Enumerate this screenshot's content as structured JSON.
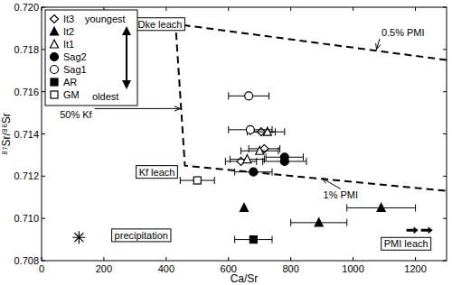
{
  "chart_data": {
    "type": "scatter",
    "x_label": "Ca/Sr",
    "y_label": "⁸⁷Sr/⁸⁶Sr",
    "xlim": [
      0,
      1300
    ],
    "ylim": [
      0.708,
      0.72
    ],
    "xticks": [
      0,
      200,
      400,
      600,
      800,
      1000,
      1200
    ],
    "yticks": [
      0.708,
      {
        "value": 0.71,
        "label": "0.710"
      },
      0.712,
      0.714,
      0.716,
      0.718,
      {
        "value": 0.72,
        "label": "0.720"
      }
    ],
    "grid": false,
    "legend": "top-left",
    "legend_arrow": [
      "youngest",
      "oldest"
    ],
    "series": [
      {
        "name": "It3",
        "color": "#000000",
        "marker": "diamond-open",
        "x": [
          640,
          705,
          715
        ],
        "values": [
          0.7127,
          0.7141,
          0.7133
        ],
        "errors": [
          50,
          45,
          50
        ]
      },
      {
        "name": "It2",
        "color": "#000000",
        "marker": "triangle-filled",
        "x": [
          650,
          890,
          1090
        ],
        "values": [
          0.7105,
          0.7098,
          0.7105
        ],
        "errors": [
          null,
          90,
          110
        ]
      },
      {
        "name": "It1",
        "color": "#000000",
        "marker": "triangle-open",
        "x": [
          660,
          700,
          725
        ],
        "values": [
          0.7128,
          0.7132,
          0.7141
        ],
        "errors": [
          55,
          60,
          55
        ]
      },
      {
        "name": "Sag2",
        "color": "#000000",
        "marker": "circle-filled",
        "x": [
          680,
          780,
          780
        ],
        "values": [
          0.7122,
          0.7127,
          0.7129
        ],
        "errors": [
          60,
          70,
          60
        ]
      },
      {
        "name": "Sag1",
        "color": "#000000",
        "marker": "circle-open",
        "x": [
          665,
          670
        ],
        "values": [
          0.7158,
          0.7142
        ],
        "errors": [
          65,
          70
        ]
      },
      {
        "name": "AR",
        "color": "#000000",
        "marker": "square-filled",
        "x": [
          680
        ],
        "values": [
          0.709
        ],
        "errors": [
          60
        ]
      },
      {
        "name": "GM",
        "color": "#000000",
        "marker": "square-open",
        "x": [
          500
        ],
        "values": [
          0.7118
        ],
        "errors": [
          55
        ]
      },
      {
        "color": "#000000",
        "marker": "asterisk",
        "x": [
          120
        ],
        "values": [
          0.7091
        ]
      },
      {
        "type": "line",
        "color": "#000000",
        "line_style": "dashed",
        "x": [
          1300,
          430,
          460,
          1300
        ],
        "values": [
          0.7175,
          0.7192,
          0.7125,
          0.7113
        ]
      }
    ],
    "annotations": [
      {
        "text": "Dke leach",
        "x": 380,
        "y": 0.7192
      },
      {
        "text": "Kf leach",
        "x": 370,
        "y": 0.7122
      },
      {
        "text": "PMI leach",
        "x": 1170,
        "y": 0.7088
      },
      {
        "text": "precipitation",
        "x": 320,
        "y": 0.7092
      },
      {
        "text": "50% Kf",
        "x": 110,
        "y": 0.7149,
        "arrow_x": 445,
        "arrow_y": 0.7152
      },
      {
        "text": "0.5% PMI",
        "x": 1160,
        "y": 0.7188,
        "arrow_x": 1075,
        "arrow_y": 0.718
      },
      {
        "text": "1% PMI",
        "x": 960,
        "y": 0.7111,
        "arrow_x": 900,
        "arrow_y": 0.7119
      }
    ]
  }
}
